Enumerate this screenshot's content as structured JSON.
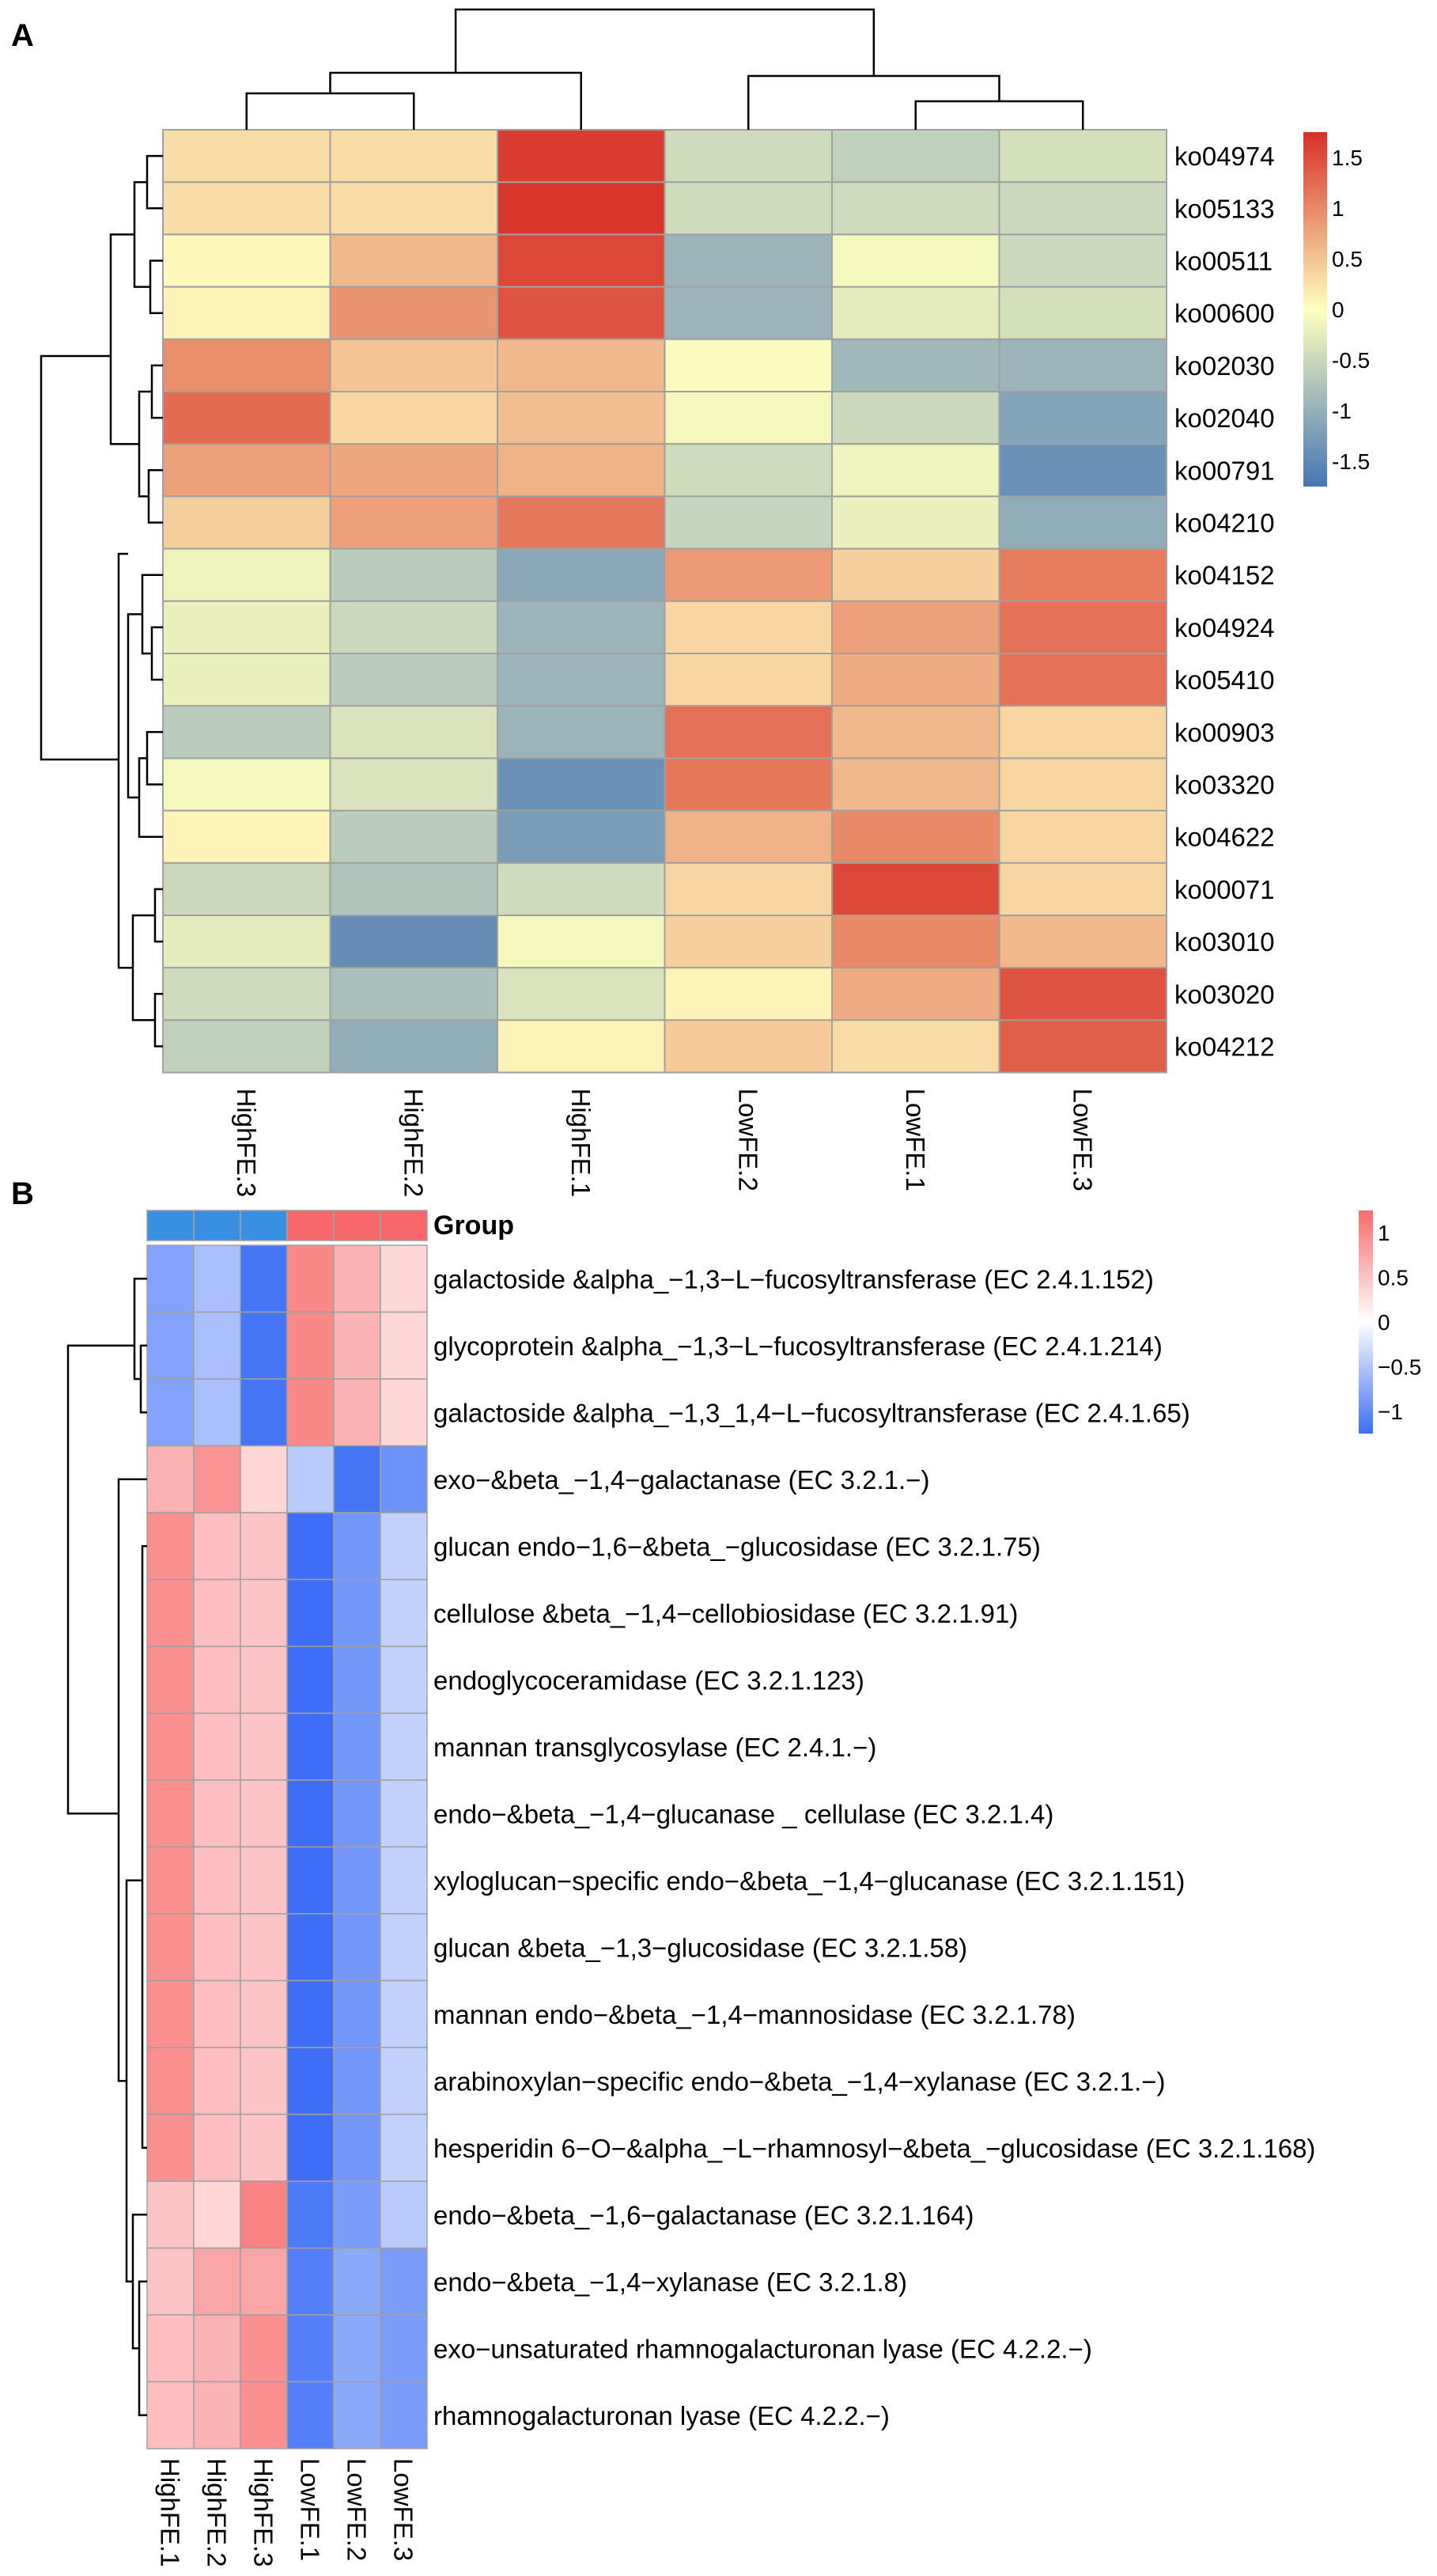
{
  "colors": {
    "heatA_low": "#4575b4",
    "heatA_mid": "#ffffbf",
    "heatA_high": "#d73027",
    "heatB_low": "#3d6ef5",
    "heatB_mid": "#ffffff",
    "heatB_high": "#f86b6b",
    "groupHigh": "#3b8fe0",
    "groupLow": "#f8686b",
    "grid": "#a0a0a0"
  },
  "chart_data": [
    {
      "panel": "A",
      "type": "heatmap",
      "columns": [
        "HighFE.3",
        "HighFE.2",
        "HighFE.1",
        "LowFE.2",
        "LowFE.1",
        "LowFE.3"
      ],
      "rows": [
        "ko04974",
        "ko05133",
        "ko00511",
        "ko00600",
        "ko02030",
        "ko02040",
        "ko00791",
        "ko04210",
        "ko04152",
        "ko04924",
        "ko05410",
        "ko00903",
        "ko03320",
        "ko04622",
        "ko00071",
        "ko03010",
        "ko03020",
        "ko04212"
      ],
      "values": [
        [
          0.3,
          0.3,
          1.65,
          -0.45,
          -0.6,
          -0.4
        ],
        [
          0.3,
          0.3,
          1.7,
          -0.45,
          -0.45,
          -0.5
        ],
        [
          0.05,
          0.6,
          1.55,
          -0.95,
          -0.1,
          -0.5
        ],
        [
          0.1,
          0.9,
          1.45,
          -0.95,
          -0.25,
          -0.4
        ],
        [
          0.95,
          0.5,
          0.6,
          -0.05,
          -0.9,
          -0.95
        ],
        [
          1.25,
          0.35,
          0.55,
          -0.1,
          -0.5,
          -1.15
        ],
        [
          0.8,
          0.75,
          0.65,
          -0.45,
          -0.15,
          -1.4
        ],
        [
          0.4,
          0.8,
          1.15,
          -0.55,
          -0.2,
          -1.05
        ],
        [
          -0.15,
          -0.65,
          -1.1,
          0.85,
          0.4,
          1.1
        ],
        [
          -0.2,
          -0.5,
          -0.95,
          0.35,
          0.8,
          1.2
        ],
        [
          -0.2,
          -0.65,
          -0.95,
          0.35,
          0.7,
          1.2
        ],
        [
          -0.65,
          -0.35,
          -0.95,
          1.2,
          0.6,
          0.35
        ],
        [
          -0.1,
          -0.35,
          -1.4,
          1.15,
          0.6,
          0.35
        ],
        [
          0.1,
          -0.65,
          -1.25,
          0.65,
          1.0,
          0.35
        ],
        [
          -0.5,
          -0.75,
          -0.45,
          0.35,
          1.55,
          0.35
        ],
        [
          -0.25,
          -1.45,
          -0.1,
          0.4,
          1.0,
          0.6
        ],
        [
          -0.45,
          -0.8,
          -0.35,
          0.1,
          0.7,
          1.45
        ],
        [
          -0.6,
          -1.05,
          0.1,
          0.45,
          0.3,
          1.35
        ]
      ],
      "legend": {
        "ticks": [
          "1.5",
          "1",
          "0.5",
          "0",
          "-0.5",
          "-1",
          "-1.5"
        ],
        "tick_values": [
          1.5,
          1,
          0.5,
          0,
          -0.5,
          -1,
          -1.5
        ],
        "range": [
          -1.75,
          1.75
        ]
      }
    },
    {
      "panel": "B",
      "type": "heatmap",
      "group_label": "Group",
      "columns": [
        "HighFE.1",
        "HighFE.2",
        "HighFE.3",
        "LowFE.1",
        "LowFE.2",
        "LowFE.3"
      ],
      "column_groups": [
        "High",
        "High",
        "High",
        "Low",
        "Low",
        "Low"
      ],
      "rows": [
        "galactoside &alpha_−1,3−L−fucosyltransferase (EC 2.4.1.152)",
        "glycoprotein &alpha_−1,3−L−fucosyltransferase (EC 2.4.1.214)",
        "galactoside &alpha_−1,3_1,4−L−fucosyltransferase (EC 2.4.1.65)",
        "exo−&beta_−1,4−galactanase (EC 3.2.1.−)",
        "glucan endo−1,6−&beta_−glucosidase (EC 3.2.1.75)",
        "cellulose &beta_−1,4−cellobiosidase (EC 3.2.1.91)",
        "endoglycoceramidase (EC 3.2.1.123)",
        "mannan transglycosylase (EC 2.4.1.−)",
        "endo−&beta_−1,4−glucanase _ cellulase (EC 3.2.1.4)",
        "xyloglucan−specific endo−&beta_−1,4−glucanase (EC 3.2.1.151)",
        "glucan &beta_−1,3−glucosidase (EC 3.2.1.58)",
        "mannan endo−&beta_−1,4−mannosidase (EC 3.2.1.78)",
        "arabinoxylan−specific endo−&beta_−1,4−xylanase (EC 3.2.1.−)",
        "hesperidin 6−O−&alpha_−L−rhamnosyl−&beta_−glucosidase (EC 3.2.1.168)",
        "endo−&beta_−1,6−galactanase (EC 3.2.1.164)",
        "endo−&beta_−1,4−xylanase (EC 3.2.1.8)",
        "exo−unsaturated rhamnogalacturonan lyase (EC 4.2.2.−)",
        "rhamnogalacturonan lyase (EC 4.2.2.−)"
      ],
      "values": [
        [
          -0.8,
          -0.55,
          -1.2,
          1.0,
          0.65,
          0.35
        ],
        [
          -0.8,
          -0.55,
          -1.2,
          1.0,
          0.65,
          0.35
        ],
        [
          -0.8,
          -0.55,
          -1.2,
          1.0,
          0.65,
          0.35
        ],
        [
          0.65,
          0.9,
          0.35,
          -0.45,
          -1.2,
          -0.95
        ],
        [
          0.95,
          0.55,
          0.5,
          -1.25,
          -0.9,
          -0.4
        ],
        [
          0.95,
          0.55,
          0.5,
          -1.25,
          -0.9,
          -0.4
        ],
        [
          0.95,
          0.55,
          0.5,
          -1.25,
          -0.9,
          -0.4
        ],
        [
          0.95,
          0.55,
          0.5,
          -1.25,
          -0.9,
          -0.4
        ],
        [
          0.95,
          0.55,
          0.5,
          -1.25,
          -0.9,
          -0.4
        ],
        [
          0.95,
          0.55,
          0.5,
          -1.25,
          -0.9,
          -0.4
        ],
        [
          0.95,
          0.55,
          0.5,
          -1.25,
          -0.9,
          -0.4
        ],
        [
          0.95,
          0.55,
          0.5,
          -1.25,
          -0.9,
          -0.4
        ],
        [
          0.95,
          0.55,
          0.5,
          -1.25,
          -0.9,
          -0.4
        ],
        [
          0.95,
          0.55,
          0.5,
          -1.25,
          -0.9,
          -0.4
        ],
        [
          0.5,
          0.35,
          1.05,
          -1.15,
          -0.85,
          -0.45
        ],
        [
          0.5,
          0.75,
          0.75,
          -1.1,
          -0.75,
          -0.85
        ],
        [
          0.55,
          0.65,
          0.95,
          -1.1,
          -0.75,
          -0.85
        ],
        [
          0.55,
          0.65,
          0.95,
          -1.1,
          -0.75,
          -0.85
        ]
      ],
      "legend": {
        "ticks": [
          "1",
          "0.5",
          "0",
          "−0.5",
          "−1"
        ],
        "tick_values": [
          1,
          0.5,
          0,
          -0.5,
          -1
        ],
        "range": [
          -1.25,
          1.25
        ]
      }
    }
  ],
  "panels": {
    "a": "A",
    "b": "B"
  }
}
